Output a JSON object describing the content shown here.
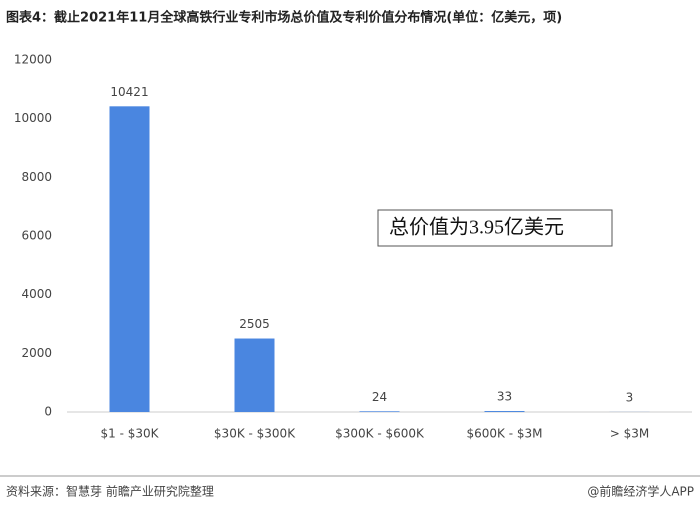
{
  "chart_data": {
    "type": "bar",
    "title": "图表4：截止2021年11月全球高铁行业专利市场总价值及专利价值分布情况(单位：亿美元，项)",
    "annotation": "总价值为3.95亿美元",
    "source": "资料来源：智慧芽 前瞻产业研究院整理",
    "credit": "@前瞻经济学人APP",
    "categories": [
      "$1 - $30K",
      "$30K - $300K",
      "$300K - $600K",
      "$600K - $3M",
      "> $3M"
    ],
    "values": [
      10421,
      2505,
      24,
      33,
      3
    ],
    "color": "#4a86e0",
    "ylim": [
      0,
      12000
    ],
    "yticks": [
      0,
      2000,
      4000,
      6000,
      8000,
      10000,
      12000
    ],
    "grid": false
  }
}
